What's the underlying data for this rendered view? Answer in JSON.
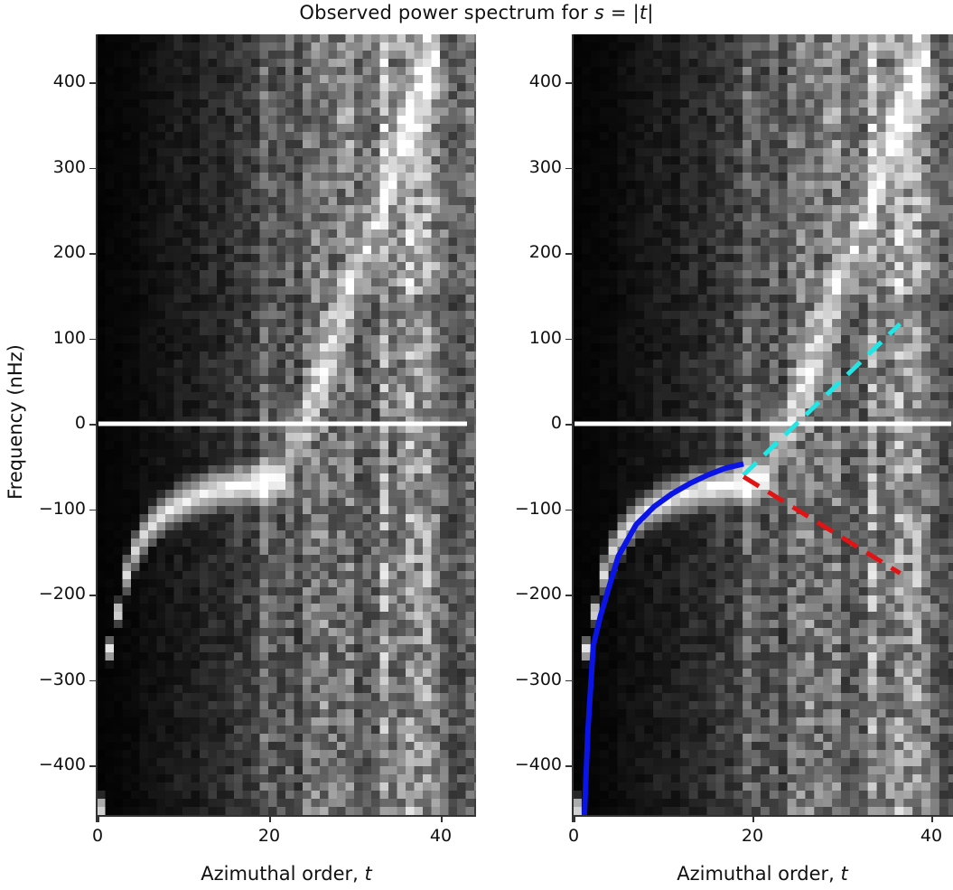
{
  "title": {
    "prefix": "Observed power spectrum for ",
    "var_s": "s",
    "mid": " = |",
    "var_t": "t",
    "suffix": "|"
  },
  "axes": {
    "ylabel": "Frequency (nHz)",
    "xlabel_prefix": "Azimuthal order, ",
    "xlabel_var": "t",
    "yticks": [
      "400",
      "300",
      "200",
      "100",
      "0",
      "−100",
      "−200",
      "−300",
      "−400"
    ],
    "xticks": [
      "0",
      "20",
      "40"
    ]
  },
  "colors": {
    "zero_line": "#ffffff",
    "fit_curve": "#0a14e6",
    "dashed_positive": "#22e5e5",
    "dashed_negative": "#e01414",
    "background": "#000000"
  },
  "chart_data": [
    {
      "type": "heatmap",
      "panel": "left",
      "title": "Observed power spectrum for s = |t|",
      "xlabel": "Azimuthal order, t",
      "ylabel": "Frequency (nHz)",
      "xlim": [
        0,
        44
      ],
      "ylim": [
        -460,
        455
      ],
      "xticks": [
        0,
        20,
        40
      ],
      "yticks": [
        -400,
        -300,
        -200,
        -100,
        0,
        100,
        200,
        300,
        400
      ],
      "colormap": "grayscale",
      "annotations": [
        {
          "type": "hline",
          "y": 0,
          "color": "white",
          "x_range": [
            0,
            43
          ]
        }
      ],
      "ridge_description": "bright ridge at negative frequency rising from ~-450 nHz at t=1 through -265 at t=2, -170 at t=5, -130 at t=7, -80 at t=10, -55 at t=13, -40 at t=17, -20 at t=22; broad power at t>=16 across all frequencies"
    },
    {
      "type": "heatmap",
      "panel": "right",
      "xlabel": "Azimuthal order, t",
      "ylabel": "",
      "xlim": [
        0,
        42
      ],
      "ylim": [
        -460,
        455
      ],
      "xticks": [
        0,
        20,
        40
      ],
      "yticks": [
        -400,
        -300,
        -200,
        -100,
        0,
        100,
        200,
        300,
        400
      ],
      "colormap": "grayscale",
      "overlays": [
        {
          "type": "hline",
          "y": 0,
          "color": "white"
        },
        {
          "type": "line",
          "style": "solid",
          "color": "blue",
          "name": "dispersion fit",
          "x": [
            1.2,
            1.6,
            2.2,
            3.0,
            4.0,
            5.0,
            7.0,
            9.0,
            11.0,
            13.0,
            15.0,
            17.0,
            19.0
          ],
          "y": [
            -460,
            -360,
            -260,
            -225,
            -190,
            -155,
            -118,
            -97,
            -82,
            -70,
            -60,
            -52,
            -47
          ]
        },
        {
          "type": "line",
          "style": "dashed",
          "color": "cyan",
          "x": [
            19,
            36.5
          ],
          "y": [
            -60,
            117
          ]
        },
        {
          "type": "line",
          "style": "dashed",
          "color": "red",
          "x": [
            19,
            36.5
          ],
          "y": [
            -62,
            -175
          ]
        }
      ]
    }
  ]
}
